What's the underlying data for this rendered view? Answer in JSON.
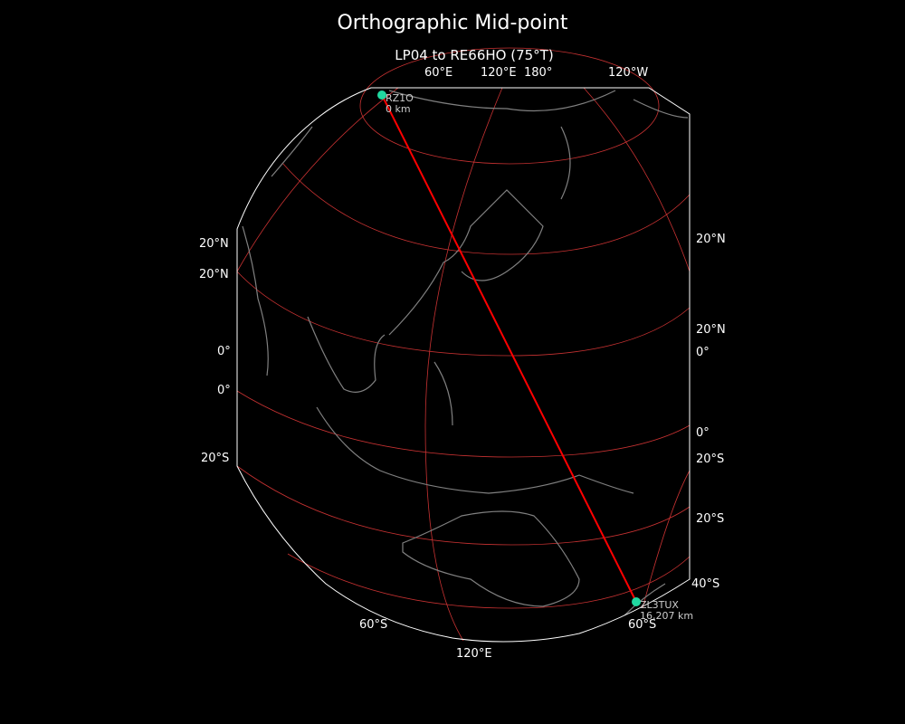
{
  "title": "Orthographic Mid-point",
  "subtitle": "LP04 to RE66HO (75°T)",
  "colors": {
    "background": "#000000",
    "graticule": "#c83232",
    "path": "#ff0000",
    "marker": "#20d8a0",
    "coastline": "#808080",
    "boundary": "#ffffff"
  },
  "tick_labels": {
    "top": [
      "60°E",
      "120°E",
      "180°",
      "120°W"
    ],
    "left": [
      "20°N",
      "20°N",
      "0°",
      "0°",
      "20°S"
    ],
    "right": [
      "20°N",
      "20°N",
      "0°",
      "0°",
      "20°S",
      "20°S",
      "40°S"
    ],
    "bottom": [
      "60°S",
      "120°E",
      "60°S"
    ]
  },
  "stations": [
    {
      "call": "RZ1O",
      "distance": "0 km"
    },
    {
      "call": "ZL3TUX",
      "distance": "16,207 km"
    }
  ]
}
